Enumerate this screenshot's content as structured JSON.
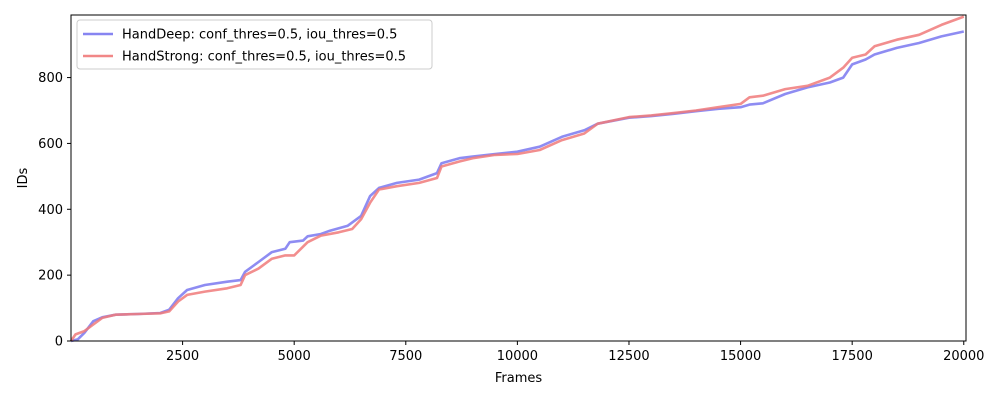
{
  "chart_data": {
    "type": "line",
    "title": "",
    "xlabel": "Frames",
    "ylabel": "IDs",
    "xlim": [
      0,
      20050
    ],
    "ylim": [
      0,
      990
    ],
    "x_ticks": [
      2500,
      5000,
      7500,
      10000,
      12500,
      15000,
      17500,
      20000
    ],
    "y_ticks": [
      0,
      200,
      400,
      600,
      800
    ],
    "grid": false,
    "legend_position": "top-left",
    "series": [
      {
        "name": "HandDeep: conf_thres=0.5, iou_thres=0.5",
        "color": "#7a78f0",
        "points": [
          [
            0,
            0
          ],
          [
            150,
            5
          ],
          [
            300,
            25
          ],
          [
            500,
            60
          ],
          [
            700,
            72
          ],
          [
            1000,
            80
          ],
          [
            1500,
            82
          ],
          [
            2000,
            85
          ],
          [
            2200,
            95
          ],
          [
            2400,
            130
          ],
          [
            2600,
            155
          ],
          [
            3000,
            170
          ],
          [
            3500,
            180
          ],
          [
            3800,
            185
          ],
          [
            3900,
            210
          ],
          [
            4200,
            240
          ],
          [
            4500,
            270
          ],
          [
            4800,
            280
          ],
          [
            4900,
            300
          ],
          [
            5200,
            305
          ],
          [
            5300,
            318
          ],
          [
            5600,
            325
          ],
          [
            5800,
            335
          ],
          [
            6200,
            350
          ],
          [
            6500,
            380
          ],
          [
            6700,
            440
          ],
          [
            6900,
            465
          ],
          [
            7300,
            480
          ],
          [
            7800,
            490
          ],
          [
            8200,
            510
          ],
          [
            8300,
            540
          ],
          [
            8700,
            555
          ],
          [
            9000,
            560
          ],
          [
            9500,
            568
          ],
          [
            10000,
            575
          ],
          [
            10500,
            590
          ],
          [
            11000,
            620
          ],
          [
            11500,
            640
          ],
          [
            11800,
            660
          ],
          [
            12500,
            678
          ],
          [
            13000,
            683
          ],
          [
            13500,
            690
          ],
          [
            14000,
            698
          ],
          [
            14500,
            705
          ],
          [
            15000,
            710
          ],
          [
            15200,
            718
          ],
          [
            15500,
            722
          ],
          [
            16000,
            750
          ],
          [
            16500,
            770
          ],
          [
            17000,
            785
          ],
          [
            17300,
            800
          ],
          [
            17500,
            840
          ],
          [
            17800,
            855
          ],
          [
            18000,
            870
          ],
          [
            18500,
            890
          ],
          [
            19000,
            905
          ],
          [
            19500,
            925
          ],
          [
            20000,
            940
          ]
        ]
      },
      {
        "name": "HandStrong: conf_thres=0.5, iou_thres=0.5",
        "color": "#f07a7a",
        "points": [
          [
            0,
            0
          ],
          [
            100,
            20
          ],
          [
            300,
            30
          ],
          [
            500,
            50
          ],
          [
            700,
            70
          ],
          [
            1000,
            80
          ],
          [
            1500,
            82
          ],
          [
            2000,
            84
          ],
          [
            2200,
            90
          ],
          [
            2400,
            120
          ],
          [
            2600,
            140
          ],
          [
            3000,
            150
          ],
          [
            3500,
            160
          ],
          [
            3800,
            170
          ],
          [
            3900,
            200
          ],
          [
            4200,
            220
          ],
          [
            4500,
            250
          ],
          [
            4800,
            260
          ],
          [
            5000,
            260
          ],
          [
            5300,
            300
          ],
          [
            5600,
            320
          ],
          [
            6000,
            330
          ],
          [
            6300,
            340
          ],
          [
            6500,
            370
          ],
          [
            6700,
            420
          ],
          [
            6900,
            460
          ],
          [
            7300,
            470
          ],
          [
            7800,
            480
          ],
          [
            8200,
            495
          ],
          [
            8300,
            530
          ],
          [
            8700,
            545
          ],
          [
            9000,
            555
          ],
          [
            9500,
            565
          ],
          [
            10000,
            568
          ],
          [
            10500,
            580
          ],
          [
            11000,
            610
          ],
          [
            11500,
            630
          ],
          [
            11800,
            660
          ],
          [
            12500,
            680
          ],
          [
            13000,
            685
          ],
          [
            13500,
            692
          ],
          [
            14000,
            700
          ],
          [
            14500,
            710
          ],
          [
            15000,
            720
          ],
          [
            15200,
            740
          ],
          [
            15500,
            745
          ],
          [
            16000,
            765
          ],
          [
            16500,
            775
          ],
          [
            17000,
            800
          ],
          [
            17300,
            830
          ],
          [
            17500,
            860
          ],
          [
            17800,
            870
          ],
          [
            18000,
            895
          ],
          [
            18500,
            915
          ],
          [
            19000,
            930
          ],
          [
            19500,
            960
          ],
          [
            20000,
            985
          ]
        ]
      }
    ]
  }
}
